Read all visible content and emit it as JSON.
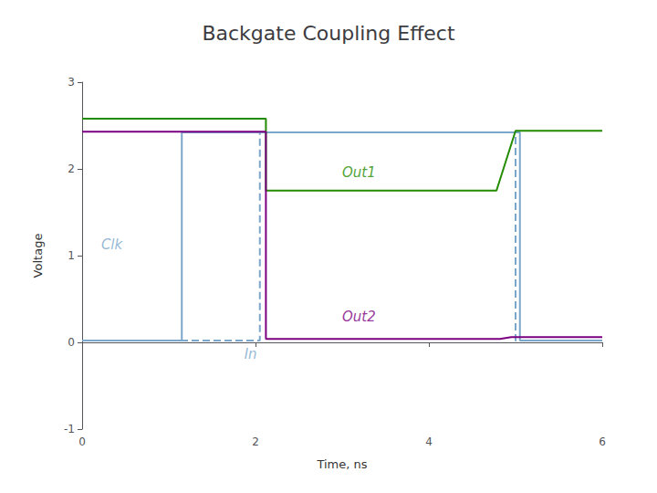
{
  "chart_data": {
    "type": "line",
    "title": "Backgate Coupling Effect",
    "xlabel": "Time, ns",
    "ylabel": "Voltage",
    "xlim": [
      0,
      6
    ],
    "ylim": [
      -1,
      3
    ],
    "xticks": [
      0,
      2,
      4,
      6
    ],
    "yticks": [
      -1,
      0,
      1,
      2,
      3
    ],
    "grid": false,
    "series": [
      {
        "color": "#7BA7CC",
        "line_style": "solid",
        "x": [
          0,
          1.0,
          1.0,
          1.15,
          1.15,
          4.9,
          4.9,
          5.05,
          5.05,
          6
        ],
        "values": [
          0.02,
          0.02,
          0.02,
          0.02,
          2.42,
          2.42,
          2.42,
          2.42,
          0.02,
          0.02
        ]
      },
      {
        "color": "#7BA7CC",
        "line_style": "dashed",
        "x": [
          0,
          1.95,
          1.95,
          2.05,
          2.05,
          4.9,
          4.9,
          5.0,
          5.0,
          6
        ],
        "values": [
          0.02,
          0.02,
          0.02,
          0.02,
          2.42,
          2.42,
          2.42,
          2.42,
          0.02,
          0.02
        ]
      },
      {
        "color": "#228B00",
        "line_style": "solid",
        "x": [
          0,
          2.0,
          2.0,
          2.12,
          2.12,
          4.78,
          4.78,
          5.0,
          5.0,
          6
        ],
        "values": [
          2.58,
          2.58,
          2.58,
          2.58,
          1.75,
          1.75,
          1.75,
          2.44,
          2.44,
          2.44
        ]
      },
      {
        "color": "#7B0081",
        "line_style": "solid",
        "x": [
          0,
          2.0,
          2.0,
          2.12,
          2.12,
          4.82,
          4.82,
          4.95,
          4.95,
          6
        ],
        "values": [
          2.43,
          2.43,
          2.43,
          2.43,
          0.04,
          0.04,
          0.04,
          0.06,
          0.06,
          0.06
        ]
      }
    ],
    "annotations": [
      {
        "text": "Clk",
        "x": 0.22,
        "y": 1.05,
        "color": "#7BA7CC"
      },
      {
        "text": "In",
        "x": 1.87,
        "y": -0.22,
        "color": "#7BA7CC"
      },
      {
        "text": "Out1",
        "x": 3.0,
        "y": 1.88,
        "color": "#228B00"
      },
      {
        "text": "Out2",
        "x": 3.0,
        "y": 0.22,
        "color": "#7B0081"
      }
    ]
  }
}
